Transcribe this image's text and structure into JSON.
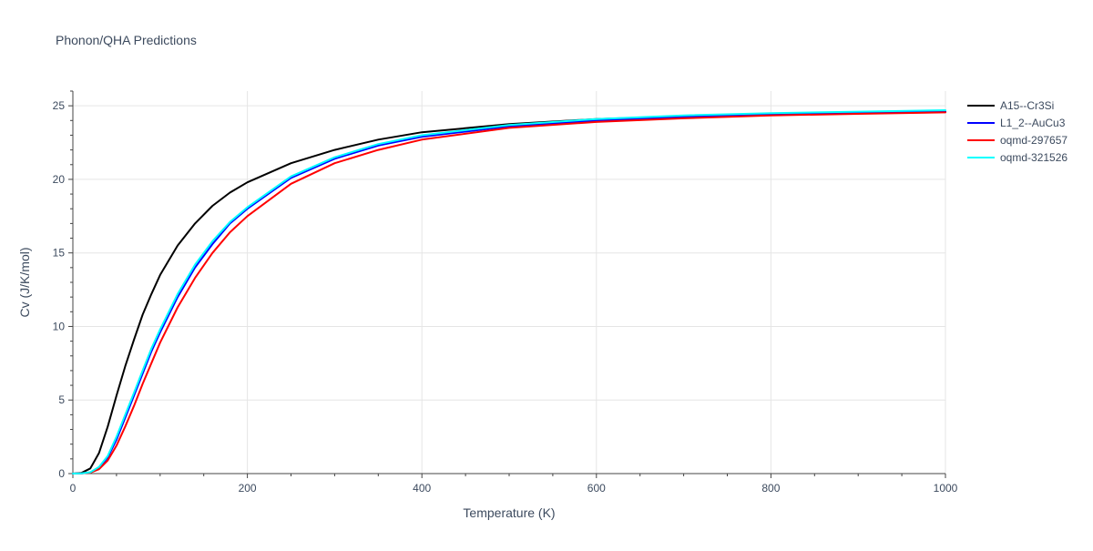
{
  "chart_data": {
    "type": "line",
    "title": "Phonon/QHA Predictions",
    "xlabel": "Temperature (K)",
    "ylabel": "Cv (J/K/mol)",
    "xlim": [
      0,
      1000
    ],
    "ylim": [
      0,
      26
    ],
    "x_ticks": [
      0,
      200,
      400,
      600,
      800,
      1000
    ],
    "y_ticks": [
      0,
      5,
      10,
      15,
      20,
      25
    ],
    "grid": true,
    "legend_position": "top-right",
    "series": [
      {
        "name": "A15--Cr3Si",
        "color": "#000000",
        "x": [
          0,
          10,
          20,
          30,
          40,
          50,
          60,
          70,
          80,
          90,
          100,
          120,
          140,
          160,
          180,
          200,
          250,
          300,
          350,
          400,
          500,
          600,
          700,
          800,
          900,
          1000
        ],
        "y": [
          0,
          0.05,
          0.35,
          1.4,
          3.2,
          5.3,
          7.3,
          9.1,
          10.8,
          12.2,
          13.5,
          15.5,
          17.0,
          18.2,
          19.1,
          19.8,
          21.1,
          22.0,
          22.7,
          23.2,
          23.75,
          24.1,
          24.3,
          24.45,
          24.55,
          24.6
        ]
      },
      {
        "name": "L1_2--AuCu3",
        "color": "#0000ff",
        "x": [
          0,
          10,
          20,
          30,
          40,
          50,
          60,
          70,
          80,
          90,
          100,
          120,
          140,
          160,
          180,
          200,
          250,
          300,
          350,
          400,
          500,
          600,
          700,
          800,
          900,
          1000
        ],
        "y": [
          0,
          0.01,
          0.08,
          0.4,
          1.1,
          2.3,
          3.8,
          5.3,
          6.8,
          8.3,
          9.6,
          12.0,
          14.0,
          15.6,
          17.0,
          18.0,
          20.1,
          21.4,
          22.3,
          22.9,
          23.6,
          24.0,
          24.25,
          24.4,
          24.5,
          24.6
        ]
      },
      {
        "name": "oqmd-297657",
        "color": "#ff0000",
        "x": [
          0,
          10,
          20,
          30,
          40,
          50,
          60,
          70,
          80,
          90,
          100,
          120,
          140,
          160,
          180,
          200,
          250,
          300,
          350,
          400,
          500,
          600,
          700,
          800,
          900,
          1000
        ],
        "y": [
          0,
          0.01,
          0.06,
          0.3,
          0.9,
          1.9,
          3.2,
          4.6,
          6.1,
          7.5,
          8.9,
          11.3,
          13.3,
          15.0,
          16.4,
          17.5,
          19.7,
          21.1,
          22.0,
          22.7,
          23.5,
          23.9,
          24.15,
          24.35,
          24.45,
          24.55
        ]
      },
      {
        "name": "oqmd-321526",
        "color": "#00ffff",
        "x": [
          0,
          10,
          20,
          30,
          40,
          50,
          60,
          70,
          80,
          90,
          100,
          120,
          140,
          160,
          180,
          200,
          250,
          300,
          350,
          400,
          500,
          600,
          700,
          800,
          900,
          1000
        ],
        "y": [
          0,
          0.01,
          0.09,
          0.45,
          1.2,
          2.5,
          4.0,
          5.5,
          7.0,
          8.5,
          9.8,
          12.2,
          14.2,
          15.8,
          17.1,
          18.1,
          20.2,
          21.5,
          22.4,
          23.0,
          23.7,
          24.1,
          24.35,
          24.5,
          24.6,
          24.7
        ]
      }
    ]
  }
}
